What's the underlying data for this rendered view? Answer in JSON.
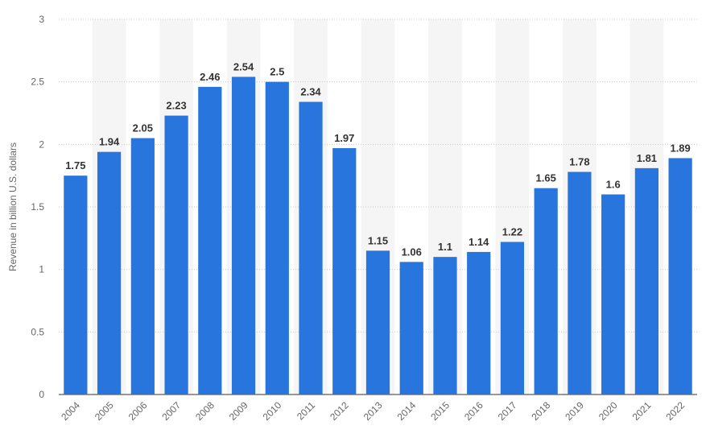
{
  "chart_data": {
    "type": "bar",
    "y_axis_label": "Revenue in billion U.S. dollars",
    "categories": [
      "2004",
      "2005",
      "2006",
      "2007",
      "2008",
      "2009",
      "2010",
      "2011",
      "2012",
      "2013",
      "2014",
      "2015",
      "2016",
      "2017",
      "2018",
      "2019",
      "2020",
      "2021",
      "2022"
    ],
    "values": [
      1.75,
      1.94,
      2.05,
      2.23,
      2.46,
      2.54,
      2.5,
      2.34,
      1.97,
      1.15,
      1.06,
      1.1,
      1.14,
      1.22,
      1.65,
      1.78,
      1.6,
      1.81,
      1.89
    ],
    "color": "#2876dd",
    "ylim": [
      0,
      3
    ],
    "yticks": [
      0,
      0.5,
      1,
      1.5,
      2,
      2.5,
      3
    ],
    "grid": true
  }
}
